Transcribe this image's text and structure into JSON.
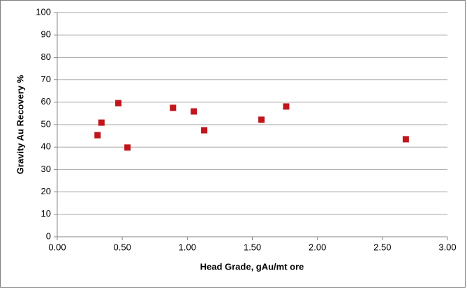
{
  "chart_data": {
    "type": "scatter",
    "x_label": "Head Grade, gAu/mt ore",
    "y_label": "Gravity Au Recovery %",
    "x": [
      0.31,
      0.34,
      0.47,
      0.54,
      0.89,
      1.05,
      1.13,
      1.57,
      1.76,
      2.68
    ],
    "y": [
      45.3,
      50.9,
      59.6,
      39.8,
      57.5,
      55.9,
      47.5,
      52.2,
      58.1,
      43.5
    ],
    "color": "#c0161c",
    "xlim": [
      0,
      3
    ],
    "ylim": [
      0,
      100
    ],
    "xticks": [
      {
        "value": 0,
        "label": "0.00"
      },
      {
        "value": 0.5,
        "label": "0.50"
      },
      {
        "value": 1,
        "label": "1.00"
      },
      {
        "value": 1.5,
        "label": "1.50"
      },
      {
        "value": 2,
        "label": "2.00"
      },
      {
        "value": 2.5,
        "label": "2.50"
      },
      {
        "value": 3,
        "label": "3.00"
      }
    ],
    "yticks": [
      0,
      10,
      20,
      30,
      40,
      50,
      60,
      70,
      80,
      90,
      100
    ],
    "grid": true
  }
}
